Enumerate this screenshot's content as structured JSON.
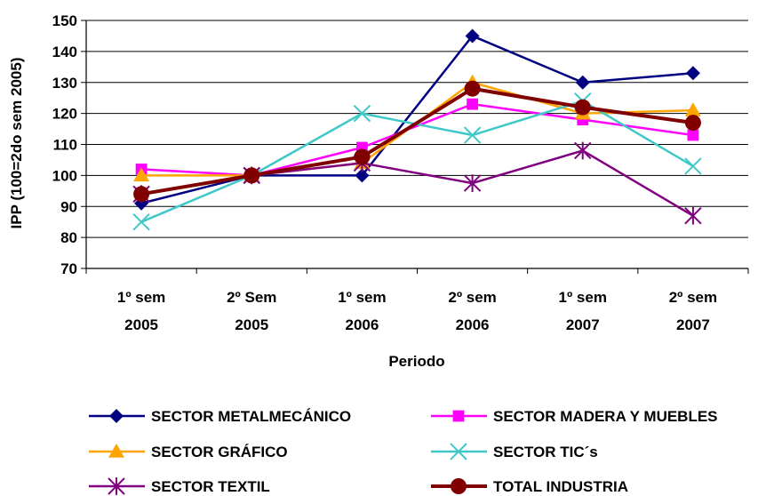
{
  "chart_data": {
    "type": "line",
    "title": "",
    "xlabel": "Periodo",
    "ylabel": "IPP (100=2do sem 2005)",
    "ylim": [
      70,
      150
    ],
    "yticks": [
      "70",
      "80",
      "90",
      "100",
      "110",
      "120",
      "130",
      "140",
      "150"
    ],
    "categories": [
      [
        "1º sem",
        "2005"
      ],
      [
        "2º Sem",
        "2005"
      ],
      [
        "1º sem",
        "2006"
      ],
      [
        "2º sem",
        "2006"
      ],
      [
        "1º sem",
        "2007"
      ],
      [
        "2º sem",
        "2007"
      ]
    ],
    "grid": true,
    "legend_position": "bottom",
    "series": [
      {
        "name": "SECTOR METALMECÁNICO",
        "color": "#000080",
        "marker": "diamond",
        "values": [
          91,
          100,
          100,
          145,
          130,
          133
        ]
      },
      {
        "name": "SECTOR MADERA Y MUEBLES",
        "color": "#ff00ff",
        "marker": "square",
        "values": [
          102,
          100,
          109,
          123,
          118,
          113
        ]
      },
      {
        "name": "SECTOR GRÁFICO",
        "color": "#ffa500",
        "marker": "triangle",
        "values": [
          100,
          100,
          104,
          130,
          120,
          121
        ]
      },
      {
        "name": "SECTOR TIC´s",
        "color": "#40c8c8",
        "marker": "x",
        "values": [
          85,
          100,
          120,
          113,
          124,
          103
        ]
      },
      {
        "name": "SECTOR TEXTIL",
        "color": "#800080",
        "marker": "asterisk",
        "values": [
          94,
          100,
          104,
          97.5,
          108,
          87
        ]
      },
      {
        "name": "TOTAL INDUSTRIA",
        "color": "#800000",
        "marker": "circle",
        "values": [
          94,
          100,
          106,
          128,
          122,
          117
        ]
      }
    ]
  }
}
